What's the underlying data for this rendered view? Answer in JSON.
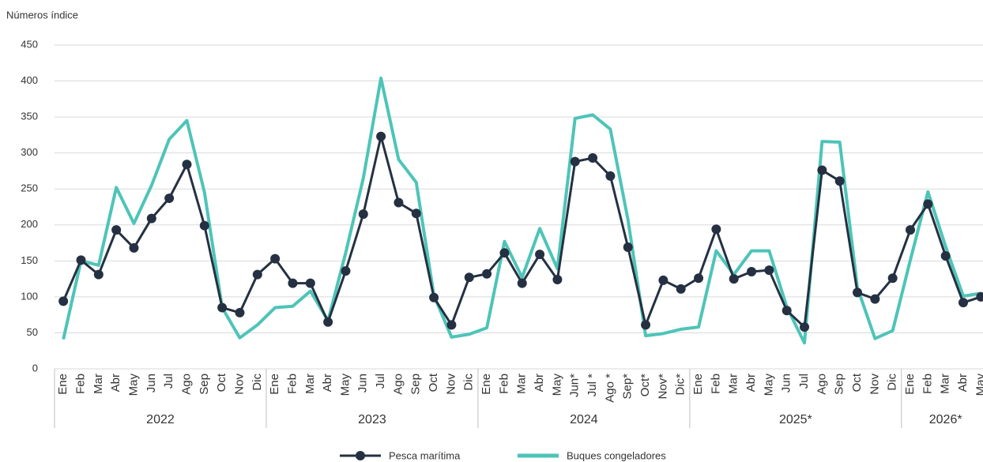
{
  "chart_data": {
    "type": "line",
    "y_label": "Números índice",
    "category_groups": [
      {
        "label": "2022",
        "categories": [
          "Ene",
          "Feb",
          "Mar",
          "Abr",
          "May",
          "Jun",
          "Jul",
          "Ago",
          "Sep",
          "Oct",
          "Nov",
          "Dic"
        ]
      },
      {
        "label": "2023",
        "categories": [
          "Ene",
          "Feb",
          "Mar",
          "Abr",
          "May",
          "Jun",
          "Jul",
          "Ago",
          "Sep",
          "Oct",
          "Nov",
          "Dic"
        ]
      },
      {
        "label": "2024",
        "categories": [
          "Ene",
          "Feb",
          "Mar",
          "Abr",
          "May",
          "Jun*",
          "Jul *",
          "Ago *",
          "Sep*",
          "Oct*",
          "Nov*",
          "Dic*"
        ]
      },
      {
        "label": "2025*",
        "categories": [
          "Ene",
          "Feb",
          "Mar",
          "Abr",
          "May",
          "Jun",
          "Jul",
          "Ago",
          "Sep",
          "Oct",
          "Nov",
          "Dic"
        ]
      },
      {
        "label": "2026*",
        "categories": [
          "Ene",
          "Feb",
          "Mar",
          "Abr",
          "May"
        ]
      }
    ],
    "series": [
      {
        "name": "Pesca marítima",
        "color": "#253142",
        "marker": true,
        "values": [
          94,
          151,
          131,
          193,
          168,
          209,
          237,
          284,
          199,
          85,
          78,
          131,
          153,
          119,
          119,
          65,
          136,
          215,
          323,
          231,
          216,
          99,
          61,
          127,
          132,
          161,
          119,
          159,
          124,
          288,
          293,
          268,
          169,
          61,
          123,
          111,
          126,
          194,
          125,
          135,
          137,
          81,
          58,
          276,
          261,
          106,
          97,
          126,
          193,
          229,
          157,
          92,
          100
        ]
      },
      {
        "name": "Buques congeladores",
        "color": "#4ec4b8",
        "marker": false,
        "values": [
          41,
          150,
          144,
          252,
          202,
          255,
          319,
          345,
          245,
          85,
          43,
          61,
          85,
          87,
          108,
          67,
          161,
          265,
          404,
          291,
          259,
          102,
          44,
          48,
          57,
          177,
          127,
          195,
          139,
          348,
          353,
          333,
          207,
          46,
          49,
          55,
          58,
          164,
          131,
          164,
          164,
          86,
          36,
          316,
          315,
          113,
          42,
          53,
          151,
          246,
          170,
          101,
          105
        ]
      }
    ],
    "ylim": [
      0,
      450
    ],
    "yticks": [
      0,
      50,
      100,
      150,
      200,
      250,
      300,
      350,
      400,
      450
    ],
    "grid": true
  }
}
